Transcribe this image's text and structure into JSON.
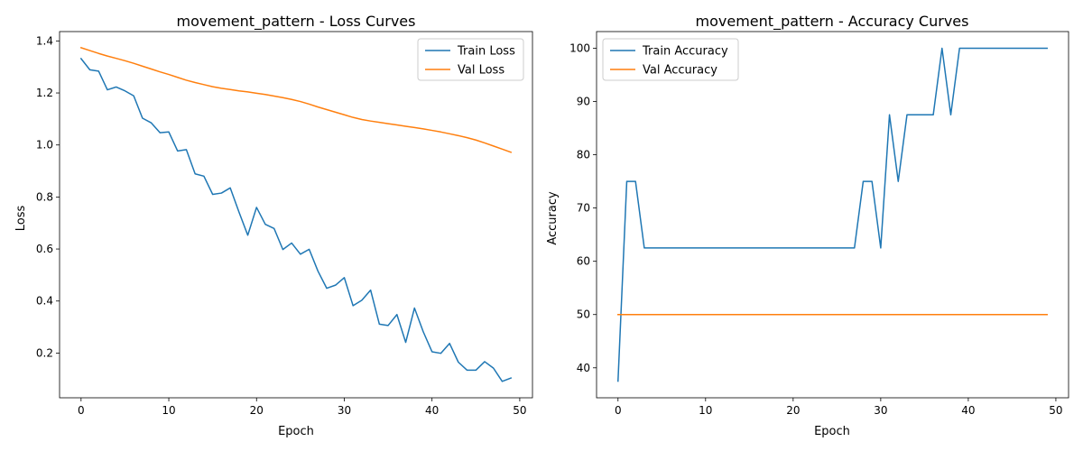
{
  "chart_data": [
    {
      "type": "line",
      "title": "movement_pattern - Loss Curves",
      "xlabel": "Epoch",
      "ylabel": "Loss",
      "xlim": [
        -2.45,
        51.45
      ],
      "ylim": [
        0.028,
        1.436
      ],
      "xticks": [
        0,
        10,
        20,
        30,
        40,
        50
      ],
      "yticks": [
        0.2,
        0.4,
        0.6,
        0.8,
        1.0,
        1.2,
        1.4
      ],
      "ytick_labels": [
        "0.2",
        "0.4",
        "0.6",
        "0.8",
        "1.0",
        "1.2",
        "1.4"
      ],
      "legend_position": "top-right",
      "x": [
        0,
        1,
        2,
        3,
        4,
        5,
        6,
        7,
        8,
        9,
        10,
        11,
        12,
        13,
        14,
        15,
        16,
        17,
        18,
        19,
        20,
        21,
        22,
        23,
        24,
        25,
        26,
        27,
        28,
        29,
        30,
        31,
        32,
        33,
        34,
        35,
        36,
        37,
        38,
        39,
        40,
        41,
        42,
        43,
        44,
        45,
        46,
        47,
        48,
        49
      ],
      "series": [
        {
          "name": "Train Loss",
          "color": "#1f77b4",
          "values": [
            1.332,
            1.289,
            1.284,
            1.212,
            1.223,
            1.208,
            1.189,
            1.103,
            1.085,
            1.047,
            1.05,
            0.977,
            0.982,
            0.889,
            0.88,
            0.81,
            0.815,
            0.835,
            0.742,
            0.653,
            0.76,
            0.695,
            0.679,
            0.598,
            0.623,
            0.58,
            0.599,
            0.515,
            0.449,
            0.461,
            0.49,
            0.382,
            0.403,
            0.442,
            0.311,
            0.306,
            0.348,
            0.241,
            0.373,
            0.282,
            0.205,
            0.199,
            0.237,
            0.165,
            0.134,
            0.134,
            0.167,
            0.142,
            0.091,
            0.104
          ]
        },
        {
          "name": "Val Loss",
          "color": "#ff7f0e",
          "values": [
            1.374,
            1.363,
            1.352,
            1.342,
            1.333,
            1.324,
            1.314,
            1.303,
            1.292,
            1.281,
            1.271,
            1.26,
            1.249,
            1.24,
            1.232,
            1.224,
            1.218,
            1.213,
            1.208,
            1.204,
            1.199,
            1.194,
            1.188,
            1.182,
            1.175,
            1.167,
            1.157,
            1.146,
            1.136,
            1.126,
            1.116,
            1.106,
            1.098,
            1.092,
            1.087,
            1.082,
            1.077,
            1.072,
            1.067,
            1.062,
            1.056,
            1.05,
            1.043,
            1.036,
            1.028,
            1.019,
            1.008,
            0.996,
            0.984,
            0.972
          ]
        }
      ]
    },
    {
      "type": "line",
      "title": "movement_pattern - Accuracy Curves",
      "xlabel": "Epoch",
      "ylabel": "Accuracy",
      "xlim": [
        -2.45,
        51.45
      ],
      "ylim": [
        34.375,
        103.125
      ],
      "xticks": [
        0,
        10,
        20,
        30,
        40,
        50
      ],
      "yticks": [
        40,
        50,
        60,
        70,
        80,
        90,
        100
      ],
      "ytick_labels": [
        "40",
        "50",
        "60",
        "70",
        "80",
        "90",
        "100"
      ],
      "legend_position": "top-left",
      "x": [
        0,
        1,
        2,
        3,
        4,
        5,
        6,
        7,
        8,
        9,
        10,
        11,
        12,
        13,
        14,
        15,
        16,
        17,
        18,
        19,
        20,
        21,
        22,
        23,
        24,
        25,
        26,
        27,
        28,
        29,
        30,
        31,
        32,
        33,
        34,
        35,
        36,
        37,
        38,
        39,
        40,
        41,
        42,
        43,
        44,
        45,
        46,
        47,
        48,
        49
      ],
      "series": [
        {
          "name": "Train Accuracy",
          "color": "#1f77b4",
          "values": [
            37.5,
            75,
            75,
            62.5,
            62.5,
            62.5,
            62.5,
            62.5,
            62.5,
            62.5,
            62.5,
            62.5,
            62.5,
            62.5,
            62.5,
            62.5,
            62.5,
            62.5,
            62.5,
            62.5,
            62.5,
            62.5,
            62.5,
            62.5,
            62.5,
            62.5,
            62.5,
            62.5,
            75,
            75,
            62.5,
            87.5,
            75,
            87.5,
            87.5,
            87.5,
            87.5,
            100,
            87.5,
            100,
            100,
            100,
            100,
            100,
            100,
            100,
            100,
            100,
            100,
            100
          ]
        },
        {
          "name": "Val Accuracy",
          "color": "#ff7f0e",
          "values": [
            50,
            50,
            50,
            50,
            50,
            50,
            50,
            50,
            50,
            50,
            50,
            50,
            50,
            50,
            50,
            50,
            50,
            50,
            50,
            50,
            50,
            50,
            50,
            50,
            50,
            50,
            50,
            50,
            50,
            50,
            50,
            50,
            50,
            50,
            50,
            50,
            50,
            50,
            50,
            50,
            50,
            50,
            50,
            50,
            50,
            50,
            50,
            50,
            50,
            50
          ]
        }
      ]
    }
  ]
}
